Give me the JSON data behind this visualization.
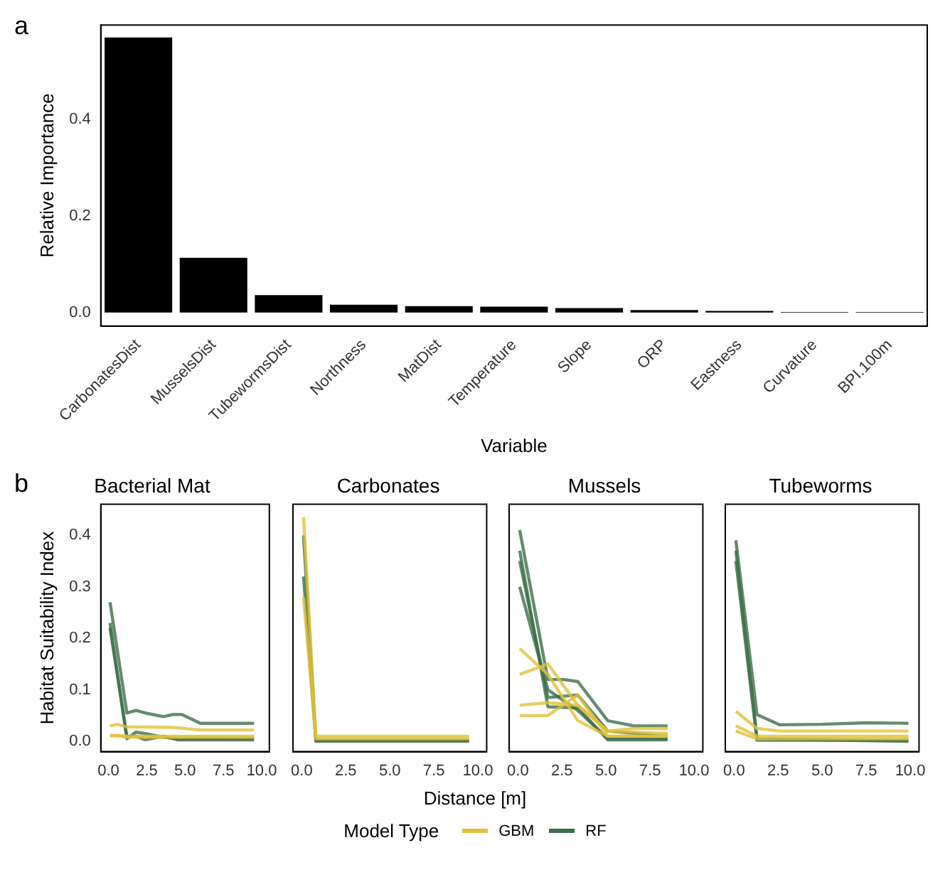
{
  "chart_data": [
    {
      "type": "bar",
      "annotations": [
        "a"
      ],
      "xlabel": "Variable",
      "ylabel": "Relative Importance",
      "categories": [
        "CarbonatesDist",
        "MusselsDist",
        "TubewormsDist",
        "Northness",
        "MatDist",
        "Temperature",
        "Slope",
        "ORP",
        "Eastness",
        "Curvature",
        "BPI.100m"
      ],
      "values": [
        0.569,
        0.113,
        0.036,
        0.016,
        0.013,
        0.012,
        0.009,
        0.005,
        0.003,
        0.001,
        0.001
      ],
      "color": "#000000",
      "ylim": [
        -0.028,
        0.595
      ],
      "yticks": [
        {
          "value": 0,
          "label": "0.0"
        },
        {
          "value": 0.2,
          "label": "0.2"
        },
        {
          "value": 0.4,
          "label": "0.4"
        }
      ],
      "grid": false
    },
    {
      "type": "line",
      "annotations": [
        "b"
      ],
      "title": "Bacterial Mat",
      "ylabel": "Habitat Suitability Index",
      "legend": "bottom",
      "legend_title": "Model Type",
      "xlim": [
        -0.5,
        10.5
      ],
      "ylim": [
        -0.02,
        0.46
      ],
      "xticks": [
        {
          "value": 0,
          "label": "0.0"
        },
        {
          "value": 2.5,
          "label": "2.5"
        },
        {
          "value": 5,
          "label": "5.0"
        },
        {
          "value": 7.5,
          "label": "7.5"
        },
        {
          "value": 10,
          "label": "10.0"
        }
      ],
      "yticks": [
        {
          "value": 0,
          "label": "0.0"
        },
        {
          "value": 0.1,
          "label": "0.1"
        },
        {
          "value": 0.2,
          "label": "0.2"
        },
        {
          "value": 0.3,
          "label": "0.3"
        },
        {
          "value": 0.4,
          "label": "0.4"
        }
      ],
      "grid": false,
      "marker": "none",
      "series": [
        {
          "name": "GBM",
          "color": "#e0c23a",
          "x": [
            0.1,
            0.6,
            1.2,
            4.2,
            6,
            9.5
          ],
          "values": [
            0.03,
            0.033,
            0.028,
            0.027,
            0.022,
            0.022
          ]
        },
        {
          "color": "#e0c23a",
          "x": [
            0.1,
            0.6,
            1.2,
            9.5
          ],
          "values": [
            0.01,
            0.012,
            0.01,
            0.01
          ]
        },
        {
          "color": "#e0c23a",
          "x": [
            0.1,
            1.2,
            9.5
          ],
          "values": [
            0.012,
            0.008,
            0.008
          ]
        },
        {
          "name": "RF",
          "color": "#3f6e4a",
          "x": [
            0.1,
            1.2,
            1.8,
            2.4,
            3.6,
            4.2,
            4.8,
            6,
            9.5
          ],
          "values": [
            0.27,
            0.055,
            0.06,
            0.055,
            0.048,
            0.052,
            0.052,
            0.035,
            0.035
          ]
        },
        {
          "color": "#3f6e4a",
          "x": [
            0.1,
            1.2,
            1.8,
            2.4,
            3.6,
            4.5,
            9.5
          ],
          "values": [
            0.23,
            0.005,
            0.018,
            0.015,
            0.008,
            0.005,
            0.005
          ]
        },
        {
          "color": "#3f6e4a",
          "x": [
            0.1,
            1.2,
            1.8,
            2.4,
            3.6,
            4.5,
            9.5
          ],
          "values": [
            0.22,
            0.01,
            0.01,
            0.003,
            0.01,
            0.003,
            0.003
          ]
        }
      ]
    },
    {
      "type": "line",
      "title": "Carbonates",
      "xlabel": "Distance [m]",
      "tick_labels": "x",
      "xlim": [
        -0.5,
        10.5
      ],
      "ylim": [
        -0.02,
        0.46
      ],
      "xticks": [
        {
          "value": 0,
          "label": "0.0"
        },
        {
          "value": 2.5,
          "label": "2.5"
        },
        {
          "value": 5,
          "label": "5.0"
        },
        {
          "value": 7.5,
          "label": "7.5"
        },
        {
          "value": 10,
          "label": "10.0"
        }
      ],
      "grid": false,
      "marker": "none",
      "series": [
        {
          "color": "#e0c23a",
          "x": [
            0.1,
            0.8,
            9.5
          ],
          "values": [
            0.435,
            0.01,
            0.01
          ]
        },
        {
          "color": "#e0c23a",
          "x": [
            0.1,
            0.8,
            9.5
          ],
          "values": [
            0.28,
            0.005,
            0.005
          ]
        },
        {
          "color": "#3f6e4a",
          "x": [
            0.1,
            0.8,
            9.5
          ],
          "values": [
            0.4,
            0,
            0
          ]
        },
        {
          "color": "#3f6e4a",
          "x": [
            0.1,
            0.8,
            9.5
          ],
          "values": [
            0.32,
            0.002,
            0.002
          ]
        }
      ]
    },
    {
      "type": "line",
      "title": "Mussels",
      "tick_labels": "x",
      "xlim": [
        -0.5,
        10.5
      ],
      "ylim": [
        -0.02,
        0.46
      ],
      "xticks": [
        {
          "value": 0,
          "label": "0.0"
        },
        {
          "value": 2.5,
          "label": "2.5"
        },
        {
          "value": 5,
          "label": "5.0"
        },
        {
          "value": 7.5,
          "label": "7.5"
        },
        {
          "value": 10,
          "label": "10.0"
        }
      ],
      "grid": false,
      "marker": "none",
      "series": [
        {
          "color": "#e0c23a",
          "x": [
            0.1,
            1.7,
            3.4,
            5.1,
            8.5
          ],
          "values": [
            0.18,
            0.13,
            0.04,
            0.01,
            0.01
          ]
        },
        {
          "color": "#e0c23a",
          "x": [
            0.1,
            1.7,
            3.4,
            5.1,
            6.6,
            8.5
          ],
          "values": [
            0.13,
            0.15,
            0.07,
            0.02,
            0.025,
            0.025
          ]
        },
        {
          "color": "#e0c23a",
          "x": [
            0.1,
            1.7,
            3.4,
            5.1,
            8.5
          ],
          "values": [
            0.07,
            0.075,
            0.07,
            0.02,
            0.015
          ]
        },
        {
          "color": "#e0c23a",
          "x": [
            0.1,
            1.7,
            3.4,
            5.1,
            8.5
          ],
          "values": [
            0.05,
            0.05,
            0.09,
            0.01,
            0.01
          ]
        },
        {
          "color": "#3f6e4a",
          "x": [
            0.1,
            1.7,
            2.6,
            3.4,
            5.1,
            6.6,
            8.5
          ],
          "values": [
            0.41,
            0.12,
            0.12,
            0.116,
            0.04,
            0.03,
            0.03
          ]
        },
        {
          "color": "#3f6e4a",
          "x": [
            0.1,
            1.7,
            3.4,
            5.1,
            8.5
          ],
          "values": [
            0.37,
            0.067,
            0.065,
            0.003,
            0.003
          ]
        },
        {
          "color": "#3f6e4a",
          "x": [
            0.1,
            1.7,
            3.4,
            5.1,
            8.5
          ],
          "values": [
            0.35,
            0.085,
            0.09,
            0.02,
            0.01
          ]
        },
        {
          "color": "#3f6e4a",
          "x": [
            0.1,
            1.7,
            3.4,
            5.1,
            8.5
          ],
          "values": [
            0.3,
            0.1,
            0.06,
            0.005,
            0.005
          ]
        }
      ]
    },
    {
      "type": "line",
      "title": "Tubeworms",
      "tick_labels": "x",
      "xlim": [
        -0.5,
        10.5
      ],
      "ylim": [
        -0.02,
        0.46
      ],
      "xticks": [
        {
          "value": 0,
          "label": "0.0"
        },
        {
          "value": 2.5,
          "label": "2.5"
        },
        {
          "value": 5,
          "label": "5.0"
        },
        {
          "value": 7.5,
          "label": "7.5"
        },
        {
          "value": 10,
          "label": "10.0"
        }
      ],
      "grid": false,
      "marker": "none",
      "series": [
        {
          "color": "#e0c23a",
          "x": [
            0.1,
            1.3,
            2.6,
            9.9
          ],
          "values": [
            0.058,
            0.025,
            0.02,
            0.02
          ]
        },
        {
          "color": "#e0c23a",
          "x": [
            0.1,
            1.3,
            9.9
          ],
          "values": [
            0.03,
            0.01,
            0.01
          ]
        },
        {
          "color": "#e0c23a",
          "x": [
            0.1,
            1.3,
            9.9
          ],
          "values": [
            0.02,
            0.005,
            0.005
          ]
        },
        {
          "color": "#3f6e4a",
          "x": [
            0.1,
            1.3,
            2.6,
            5,
            7.5,
            9.9
          ],
          "values": [
            0.39,
            0.052,
            0.032,
            0.033,
            0.036,
            0.035
          ]
        },
        {
          "color": "#3f6e4a",
          "x": [
            0.1,
            1.3,
            9.9
          ],
          "values": [
            0.35,
            0.002,
            0.002
          ]
        },
        {
          "color": "#3f6e4a",
          "x": [
            0.1,
            1.3,
            9.9
          ],
          "values": [
            0.37,
            0.005,
            0
          ]
        }
      ]
    }
  ]
}
